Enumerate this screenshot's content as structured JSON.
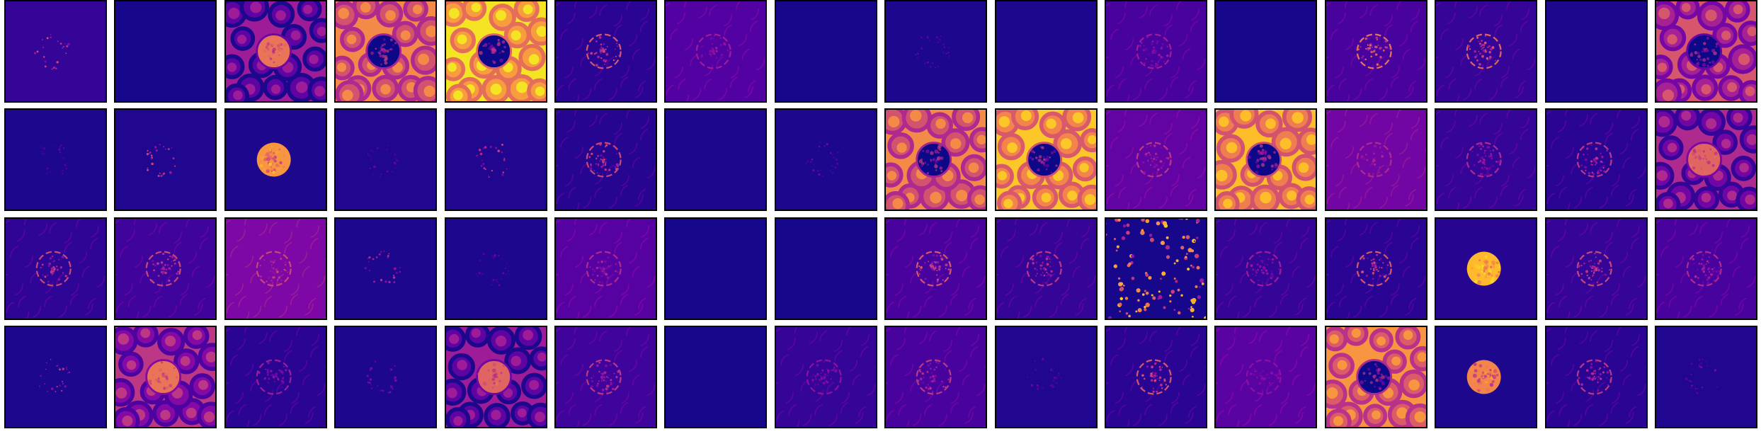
{
  "figure": {
    "rows": 4,
    "cols": 16,
    "colormap": "plasma",
    "colormap_stops": [
      "#0d0887",
      "#5302a3",
      "#8b0aa5",
      "#b83289",
      "#db5c68",
      "#f48849",
      "#febd2a",
      "#f0f921"
    ],
    "tiles": [
      [
        {
          "style": "sparse",
          "level": 0.08,
          "intensity": 0.55
        },
        {
          "style": "blank",
          "level": 0.02,
          "intensity": 0.0
        },
        {
          "style": "cells",
          "level": 0.35,
          "intensity": 0.65
        },
        {
          "style": "bright",
          "level": 0.72,
          "intensity": 0.45
        },
        {
          "style": "bright",
          "level": 0.95,
          "intensity": 0.35
        },
        {
          "style": "edges",
          "level": 0.06,
          "intensity": 0.55
        },
        {
          "style": "edges",
          "level": 0.14,
          "intensity": 0.35
        },
        {
          "style": "blank",
          "level": 0.02,
          "intensity": 0.0
        },
        {
          "style": "sparse",
          "level": 0.03,
          "intensity": 0.25
        },
        {
          "style": "blank",
          "level": 0.03,
          "intensity": 0.0
        },
        {
          "style": "edges",
          "level": 0.12,
          "intensity": 0.35
        },
        {
          "style": "blank",
          "level": 0.02,
          "intensity": 0.0
        },
        {
          "style": "edges",
          "level": 0.12,
          "intensity": 0.65
        },
        {
          "style": "edges",
          "level": 0.08,
          "intensity": 0.6
        },
        {
          "style": "blank",
          "level": 0.03,
          "intensity": 0.0
        },
        {
          "style": "bright",
          "level": 0.55,
          "intensity": 0.55
        }
      ],
      [
        {
          "style": "sparse",
          "level": 0.03,
          "intensity": 0.2
        },
        {
          "style": "sparse",
          "level": 0.04,
          "intensity": 0.55
        },
        {
          "style": "blob",
          "level": 0.03,
          "intensity": 0.75
        },
        {
          "style": "sparse",
          "level": 0.04,
          "intensity": 0.2
        },
        {
          "style": "sparse",
          "level": 0.04,
          "intensity": 0.5
        },
        {
          "style": "edges",
          "level": 0.05,
          "intensity": 0.5
        },
        {
          "style": "blank",
          "level": 0.03,
          "intensity": 0.0
        },
        {
          "style": "sparse",
          "level": 0.03,
          "intensity": 0.25
        },
        {
          "style": "bright",
          "level": 0.72,
          "intensity": 0.45
        },
        {
          "style": "bright",
          "level": 0.88,
          "intensity": 0.45
        },
        {
          "style": "edges",
          "level": 0.18,
          "intensity": 0.45
        },
        {
          "style": "bright",
          "level": 0.86,
          "intensity": 0.3
        },
        {
          "style": "edges",
          "level": 0.22,
          "intensity": 0.4
        },
        {
          "style": "edges",
          "level": 0.08,
          "intensity": 0.4
        },
        {
          "style": "edges",
          "level": 0.06,
          "intensity": 0.45
        },
        {
          "style": "cells",
          "level": 0.4,
          "intensity": 0.6
        }
      ],
      [
        {
          "style": "edges",
          "level": 0.07,
          "intensity": 0.5
        },
        {
          "style": "edges",
          "level": 0.1,
          "intensity": 0.5
        },
        {
          "style": "edges",
          "level": 0.25,
          "intensity": 0.5
        },
        {
          "style": "sparse",
          "level": 0.03,
          "intensity": 0.45
        },
        {
          "style": "sparse",
          "level": 0.03,
          "intensity": 0.2
        },
        {
          "style": "edges",
          "level": 0.15,
          "intensity": 0.4
        },
        {
          "style": "blank",
          "level": 0.02,
          "intensity": 0.0
        },
        {
          "style": "blank",
          "level": 0.02,
          "intensity": 0.0
        },
        {
          "style": "edges",
          "level": 0.12,
          "intensity": 0.55
        },
        {
          "style": "edges",
          "level": 0.08,
          "intensity": 0.45
        },
        {
          "style": "scatter",
          "level": 0.02,
          "intensity": 0.6
        },
        {
          "style": "edges",
          "level": 0.08,
          "intensity": 0.35
        },
        {
          "style": "edges",
          "level": 0.06,
          "intensity": 0.55
        },
        {
          "style": "blob",
          "level": 0.05,
          "intensity": 0.85
        },
        {
          "style": "edges",
          "level": 0.08,
          "intensity": 0.5
        },
        {
          "style": "edges",
          "level": 0.12,
          "intensity": 0.4
        }
      ],
      [
        {
          "style": "sparse",
          "level": 0.03,
          "intensity": 0.45
        },
        {
          "style": "cells",
          "level": 0.45,
          "intensity": 0.65
        },
        {
          "style": "edges",
          "level": 0.06,
          "intensity": 0.35
        },
        {
          "style": "sparse",
          "level": 0.03,
          "intensity": 0.3
        },
        {
          "style": "cells",
          "level": 0.35,
          "intensity": 0.6
        },
        {
          "style": "edges",
          "level": 0.1,
          "intensity": 0.45
        },
        {
          "style": "blank",
          "level": 0.02,
          "intensity": 0.0
        },
        {
          "style": "edges",
          "level": 0.08,
          "intensity": 0.3
        },
        {
          "style": "edges",
          "level": 0.12,
          "intensity": 0.45
        },
        {
          "style": "sparse",
          "level": 0.04,
          "intensity": 0.2
        },
        {
          "style": "edges",
          "level": 0.06,
          "intensity": 0.55
        },
        {
          "style": "edges",
          "level": 0.16,
          "intensity": 0.3
        },
        {
          "style": "bright",
          "level": 0.75,
          "intensity": 0.45
        },
        {
          "style": "blob",
          "level": 0.03,
          "intensity": 0.7
        },
        {
          "style": "edges",
          "level": 0.06,
          "intensity": 0.45
        },
        {
          "style": "sparse",
          "level": 0.04,
          "intensity": 0.25
        }
      ]
    ]
  }
}
